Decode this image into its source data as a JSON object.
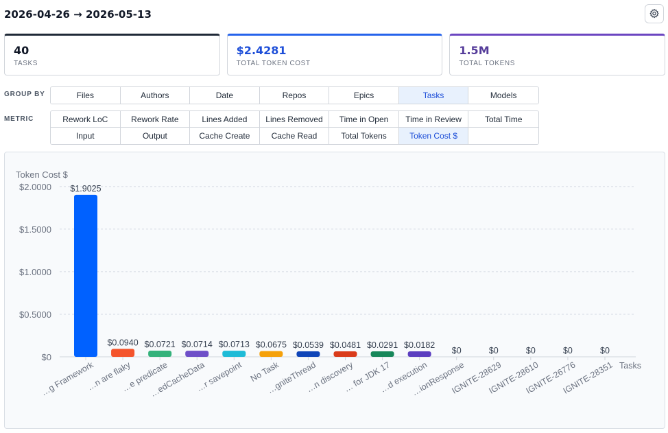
{
  "header": {
    "date_range": "2026-04-26 → 2026-05-13",
    "settings_icon": "gear-icon"
  },
  "summary": [
    {
      "value": "40",
      "label": "TASKS"
    },
    {
      "value": "$2.4281",
      "label": "TOTAL TOKEN COST"
    },
    {
      "value": "1.5M",
      "label": "TOTAL TOKENS"
    }
  ],
  "group_by": {
    "label": "GROUP BY",
    "options": [
      "Files",
      "Authors",
      "Date",
      "Repos",
      "Epics",
      "Tasks",
      "Models"
    ],
    "selected": "Tasks"
  },
  "metric": {
    "label": "METRIC",
    "options": [
      "Rework LoC",
      "Rework Rate",
      "Lines Added",
      "Lines Removed",
      "Time in Open",
      "Time in Review",
      "Total Time",
      "Input",
      "Output",
      "Cache Create",
      "Cache Read",
      "Total Tokens",
      "Token Cost $"
    ],
    "selected": "Token Cost $"
  },
  "colors": {
    "accent": "#1d4ed8",
    "active_bg": "#e8f1fd"
  },
  "chart_data": {
    "type": "bar",
    "ylabel": "Token Cost $",
    "xlabel": "Tasks",
    "ylim": [
      0,
      2.2
    ],
    "yticks": [
      0,
      0.5,
      1.0,
      1.5,
      2.0
    ],
    "ytick_labels": [
      "$0",
      "$0.5000",
      "$1.0000",
      "$1.5000",
      "$2.0000"
    ],
    "grid": true,
    "categories": [
      "…g Framework",
      "…n are flaky",
      "…e predicate",
      "…edCacheData",
      "…r savepoint",
      "No Task",
      "…gniteThread",
      "…n discovery",
      "… for JDK 17",
      "…d execution",
      "…ionResponse",
      "IGNITE-28629",
      "IGNITE-28610",
      "IGNITE-26776",
      "IGNITE-28351"
    ],
    "values": [
      1.9025,
      0.094,
      0.0721,
      0.0714,
      0.0713,
      0.0675,
      0.0539,
      0.0481,
      0.0291,
      0.0182,
      0,
      0,
      0,
      0,
      0
    ],
    "value_labels": [
      "$1.9025",
      "$0.0940",
      "$0.0721",
      "$0.0714",
      "$0.0713",
      "$0.0675",
      "$0.0539",
      "$0.0481",
      "$0.0291",
      "$0.0182",
      "$0",
      "$0",
      "$0",
      "$0",
      "$0"
    ],
    "bar_colors": [
      "#0061ff",
      "#f4542c",
      "#34b27b",
      "#6e4fc8",
      "#1ebbd7",
      "#f5a10a",
      "#0f45b8",
      "#da3b1a",
      "#17875a",
      "#5b3ec0",
      "#0061ff",
      "#0061ff",
      "#0061ff",
      "#0061ff",
      "#0061ff"
    ]
  }
}
